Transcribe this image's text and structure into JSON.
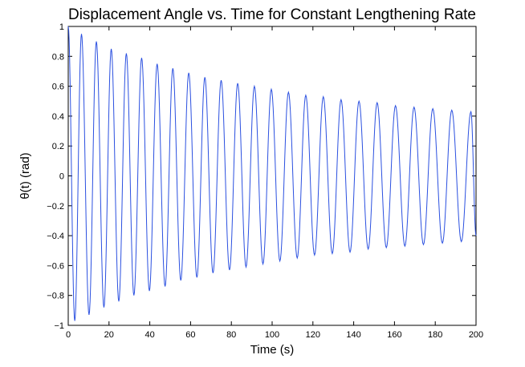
{
  "chart_data": {
    "type": "line",
    "title": "Displacement Angle vs. Time for Constant Lengthening Rate",
    "xlabel": "Time (s)",
    "ylabel": "θ(t) (rad)",
    "xlim": [
      0,
      200
    ],
    "ylim": [
      -1,
      1
    ],
    "xticks": [
      0,
      20,
      40,
      60,
      80,
      100,
      120,
      140,
      160,
      180,
      200
    ],
    "yticks": [
      -1,
      -0.8,
      -0.6,
      -0.4,
      -0.2,
      0,
      0.2,
      0.4,
      0.6,
      0.8,
      1
    ],
    "ytick_labels": [
      "−1",
      "−0.8",
      "−0.6",
      "−0.4",
      "−0.2",
      "0",
      "0.2",
      "0.4",
      "0.6",
      "0.8",
      "1"
    ],
    "grid": false,
    "series": [
      {
        "name": "θ(t)",
        "color": "#2b50e0",
        "initial_value": 1.0,
        "peaks": [
          {
            "t": 6.5,
            "value": 0.95
          },
          {
            "t": 13.8,
            "value": 0.9
          },
          {
            "t": 21.1,
            "value": 0.85
          },
          {
            "t": 28.5,
            "value": 0.82
          },
          {
            "t": 36.0,
            "value": 0.79
          },
          {
            "t": 43.6,
            "value": 0.75
          },
          {
            "t": 51.3,
            "value": 0.72
          },
          {
            "t": 59.1,
            "value": 0.69
          },
          {
            "t": 67.0,
            "value": 0.66
          },
          {
            "t": 75.0,
            "value": 0.64
          },
          {
            "t": 83.1,
            "value": 0.62
          },
          {
            "t": 91.3,
            "value": 0.6
          },
          {
            "t": 99.6,
            "value": 0.58
          },
          {
            "t": 108.0,
            "value": 0.56
          },
          {
            "t": 116.5,
            "value": 0.54
          },
          {
            "t": 125.1,
            "value": 0.53
          },
          {
            "t": 133.8,
            "value": 0.51
          },
          {
            "t": 142.6,
            "value": 0.5
          },
          {
            "t": 151.5,
            "value": 0.49
          },
          {
            "t": 160.5,
            "value": 0.47
          },
          {
            "t": 169.6,
            "value": 0.46
          },
          {
            "t": 178.8,
            "value": 0.45
          },
          {
            "t": 188.1,
            "value": 0.44
          },
          {
            "t": 197.5,
            "value": 0.43
          }
        ],
        "troughs": [
          {
            "t": 3.2,
            "value": -0.97
          },
          {
            "t": 10.2,
            "value": -0.93
          },
          {
            "t": 17.5,
            "value": -0.88
          },
          {
            "t": 24.8,
            "value": -0.84
          },
          {
            "t": 32.2,
            "value": -0.8
          },
          {
            "t": 39.8,
            "value": -0.77
          },
          {
            "t": 47.5,
            "value": -0.74
          },
          {
            "t": 55.2,
            "value": -0.7
          },
          {
            "t": 63.1,
            "value": -0.68
          },
          {
            "t": 71.0,
            "value": -0.65
          },
          {
            "t": 79.1,
            "value": -0.63
          },
          {
            "t": 87.2,
            "value": -0.61
          },
          {
            "t": 95.5,
            "value": -0.59
          },
          {
            "t": 103.8,
            "value": -0.57
          },
          {
            "t": 112.3,
            "value": -0.55
          },
          {
            "t": 120.8,
            "value": -0.53
          },
          {
            "t": 129.5,
            "value": -0.52
          },
          {
            "t": 138.2,
            "value": -0.51
          },
          {
            "t": 147.1,
            "value": -0.49
          },
          {
            "t": 156.0,
            "value": -0.48
          },
          {
            "t": 165.1,
            "value": -0.47
          },
          {
            "t": 174.2,
            "value": -0.46
          },
          {
            "t": 183.5,
            "value": -0.45
          },
          {
            "t": 192.8,
            "value": -0.44
          }
        ],
        "final_value": -0.4
      }
    ]
  }
}
